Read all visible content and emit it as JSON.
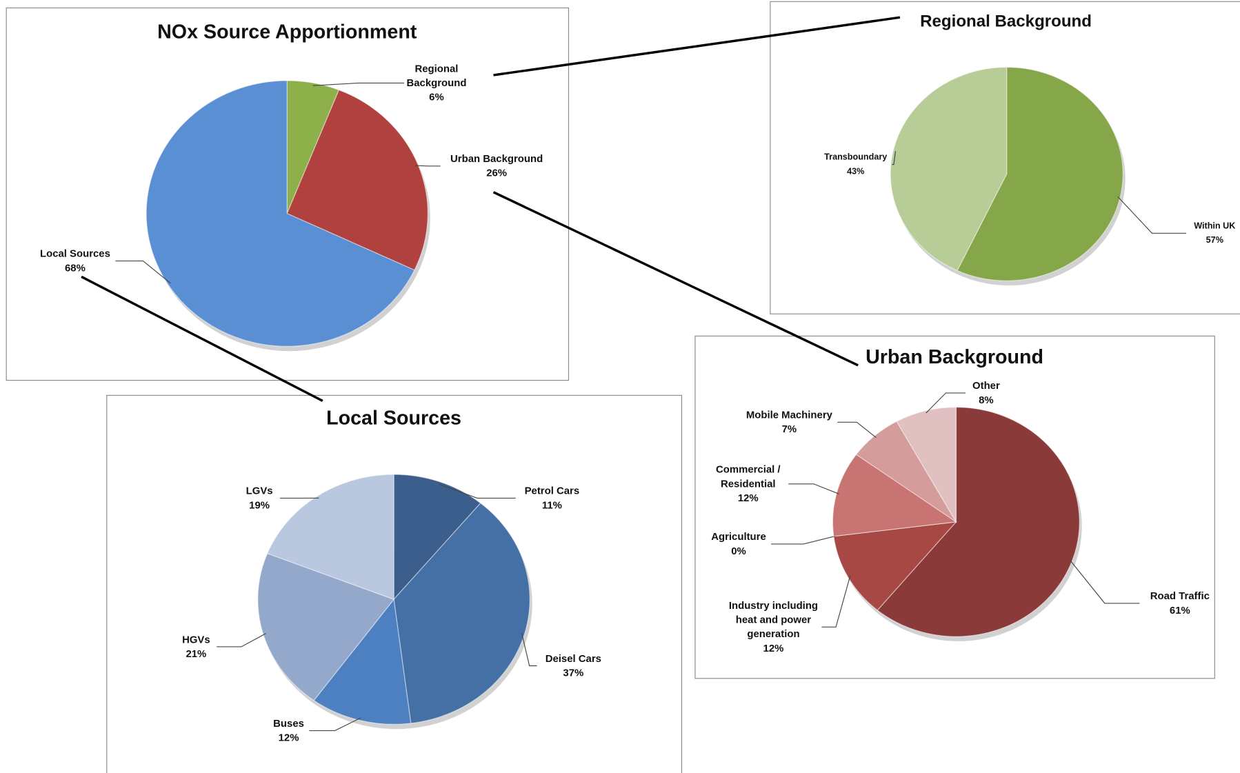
{
  "chart_data": [
    {
      "type": "pie",
      "title": "NOx Source Apportionment",
      "categories": [
        "Regional Background",
        "Urban Background",
        "Local Sources"
      ],
      "values": [
        6,
        26,
        68
      ],
      "value_labels": [
        "6%",
        "26%",
        "68%"
      ],
      "colors": [
        "#8db04b",
        "#b0413e",
        "#5b8fd4"
      ]
    },
    {
      "type": "pie",
      "title": "Regional Background",
      "categories": [
        "Within UK",
        "Transboundary"
      ],
      "values": [
        57,
        43
      ],
      "value_labels": [
        "57%",
        "43%"
      ],
      "colors": [
        "#86a64a",
        "#b8cc98"
      ]
    },
    {
      "type": "pie",
      "title": "Urban Background",
      "categories": [
        "Road Traffic",
        "Industry including heat and power generation",
        "Agriculture",
        "Commercial / Residential",
        "Mobile Machinery",
        "Other"
      ],
      "values": [
        61,
        12,
        0,
        12,
        7,
        8
      ],
      "value_labels": [
        "61%",
        "12%",
        "0%",
        "12%",
        "7%",
        "8%"
      ],
      "colors": [
        "#8b3a3a",
        "#a84845",
        "#b85a58",
        "#c87472",
        "#d49c9a",
        "#e0c0c0"
      ]
    },
    {
      "type": "pie",
      "title": "Local Sources",
      "categories": [
        "Petrol Cars",
        "Deisel Cars",
        "Buses",
        "HGVs",
        "LGVs"
      ],
      "values": [
        11,
        37,
        12,
        21,
        19
      ],
      "value_labels": [
        "11%",
        "37%",
        "12%",
        "21%",
        "19%"
      ],
      "colors": [
        "#3b5e8c",
        "#4470a5",
        "#4d80c0",
        "#94a8cc",
        "#b9c7df"
      ]
    }
  ]
}
